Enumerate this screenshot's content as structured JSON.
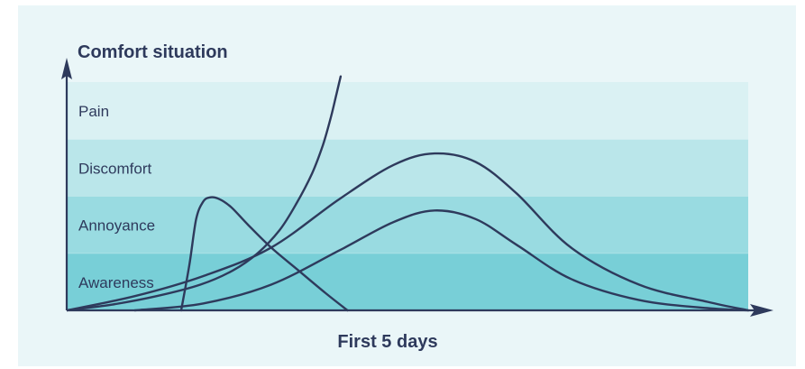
{
  "chart_data": {
    "type": "line",
    "title": "Comfort situation",
    "xlabel": "First 5 days",
    "ylabel": "",
    "grid": false,
    "xlim": [
      0,
      5
    ],
    "ylim": [
      0,
      4
    ],
    "bands": [
      {
        "label": "Awareness",
        "from": 0,
        "to": 1,
        "color": "#78cfd7"
      },
      {
        "label": "Annoyance",
        "from": 1,
        "to": 2,
        "color": "#99dbe1"
      },
      {
        "label": "Discomfort",
        "from": 2,
        "to": 3,
        "color": "#bae6ea"
      },
      {
        "label": "Pain",
        "from": 3,
        "to": 4,
        "color": "#daf1f3"
      }
    ],
    "series": [
      {
        "id": "steep-rise",
        "x": [
          0,
          0.33,
          0.66,
          0.98,
          1.22,
          1.4,
          1.56,
          1.68,
          1.8,
          1.88,
          1.94,
          1.98,
          2.01
        ],
        "y": [
          0,
          0.1,
          0.25,
          0.45,
          0.7,
          1.0,
          1.4,
          1.85,
          2.4,
          2.9,
          3.4,
          3.8,
          4.1
        ]
      },
      {
        "id": "early-spike",
        "x": [
          0.84,
          0.9,
          0.95,
          1.0,
          1.05,
          1.12,
          1.21,
          1.33,
          1.5,
          1.7,
          1.9,
          2.06
        ],
        "y": [
          0,
          0.8,
          1.6,
          1.9,
          1.98,
          1.95,
          1.8,
          1.5,
          1.1,
          0.7,
          0.3,
          0
        ]
      },
      {
        "id": "high-curve",
        "x": [
          0,
          0.5,
          1.0,
          1.5,
          2.0,
          2.4,
          2.7,
          3.0,
          3.3,
          3.7,
          4.2,
          4.7,
          5.0
        ],
        "y": [
          0,
          0.25,
          0.6,
          1.1,
          1.95,
          2.55,
          2.75,
          2.6,
          2.05,
          1.1,
          0.45,
          0.15,
          0
        ]
      },
      {
        "id": "mid-curve",
        "x": [
          0.5,
          1.0,
          1.5,
          2.0,
          2.4,
          2.7,
          3.0,
          3.3,
          3.7,
          4.2,
          4.7,
          5.0
        ],
        "y": [
          0,
          0.12,
          0.45,
          1.05,
          1.55,
          1.75,
          1.6,
          1.15,
          0.55,
          0.18,
          0.04,
          0
        ]
      }
    ]
  },
  "colors": {
    "panel": "#eaf6f8",
    "ink": "#2e3a5c"
  }
}
